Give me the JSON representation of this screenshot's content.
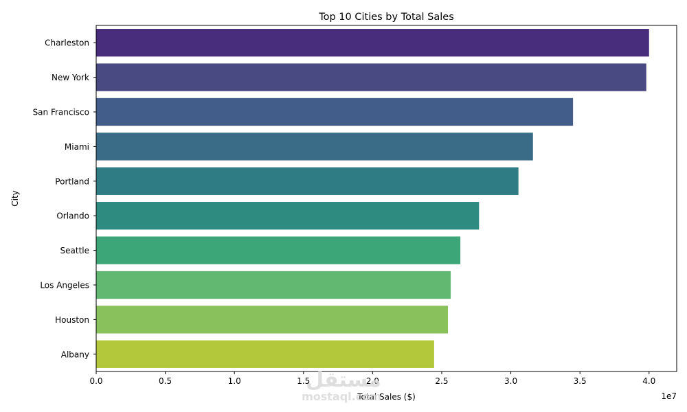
{
  "chart_data": {
    "type": "bar",
    "orientation": "horizontal",
    "title": "Top 10 Cities by Total Sales",
    "xlabel": "Total Sales ($)",
    "ylabel": "City",
    "x_offset_label": "1e7",
    "xlim": [
      0,
      42000000
    ],
    "x_ticks": [
      0,
      5000000,
      10000000,
      15000000,
      20000000,
      25000000,
      30000000,
      35000000,
      40000000
    ],
    "x_tick_labels": [
      "0.0",
      "0.5",
      "1.0",
      "1.5",
      "2.0",
      "2.5",
      "3.0",
      "3.5",
      "4.0"
    ],
    "grid": false,
    "categories": [
      "Charleston",
      "New York",
      "San Francisco",
      "Miami",
      "Portland",
      "Orlando",
      "Seattle",
      "Los Angeles",
      "Houston",
      "Albany"
    ],
    "values": [
      40000000,
      39800000,
      34500000,
      31600000,
      30550000,
      27700000,
      26350000,
      25650000,
      25450000,
      24450000
    ],
    "colors": [
      "#472d7b",
      "#482979",
      "#3e4a89",
      "#31688e",
      "#26828e",
      "#2a8f7f",
      "#35b779",
      "#5ec36b",
      "#86c55a",
      "#b5cc3a"
    ],
    "palette": [
      "#472d7b",
      "#4a4a82",
      "#435d8a",
      "#3a6c87",
      "#2f7c84",
      "#2e8b7f",
      "#3ca678",
      "#62b870",
      "#89c25c",
      "#b3c93b"
    ]
  },
  "watermark": {
    "arabic": "مستقل",
    "latin": "mostaql.com"
  }
}
